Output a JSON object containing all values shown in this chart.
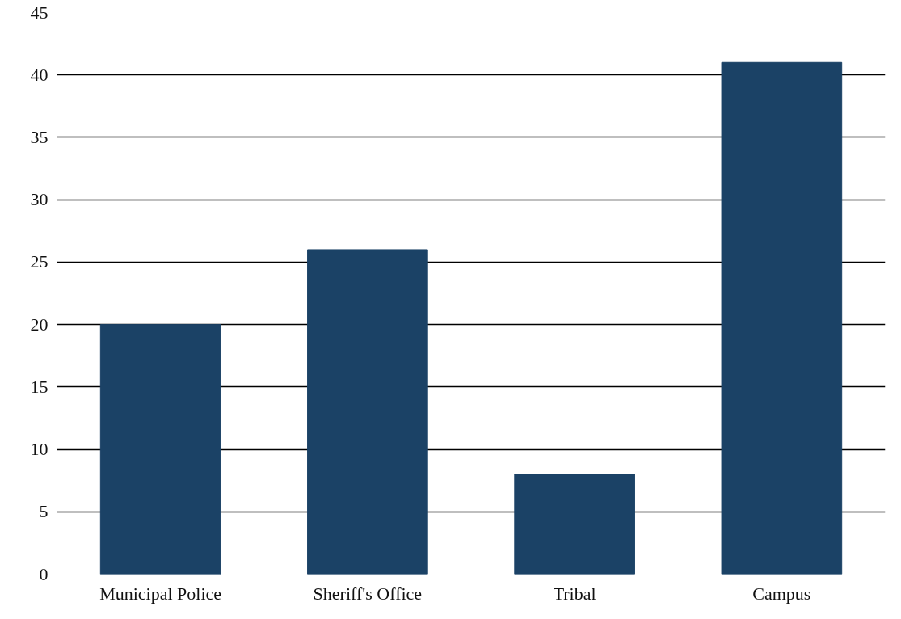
{
  "chart_data": {
    "type": "bar",
    "categories": [
      "Municipal Police",
      "Sheriff's Office",
      "Tribal",
      "Campus"
    ],
    "values": [
      20,
      26,
      8,
      41
    ],
    "color": "#1b4266",
    "ylim": [
      0,
      45
    ],
    "yticks": [
      0,
      5,
      10,
      15,
      20,
      25,
      30,
      35,
      40,
      45
    ],
    "grid": "y"
  }
}
